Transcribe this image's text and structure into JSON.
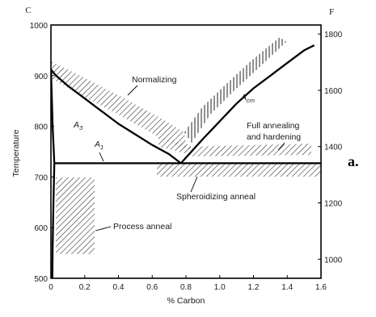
{
  "chart_data": {
    "type": "line",
    "xlabel": "% Carbon",
    "ylabel": "Temperature",
    "left_unit": "C",
    "right_unit": "F",
    "panel_letter": "a.",
    "xlim": [
      0,
      1.6
    ],
    "ylim": [
      500,
      1000
    ],
    "right_ylim": [
      932,
      1832
    ],
    "x_ticks": [
      "0",
      "0.2",
      "0.4",
      "0.6",
      "0.8",
      "1.0",
      "1.2",
      "1.4",
      "1.6"
    ],
    "y_ticks": [
      "500",
      "600",
      "700",
      "800",
      "900",
      "1000"
    ],
    "right_ticks": [
      "1000",
      "1200",
      "1400",
      "1600",
      "1800"
    ],
    "series": [
      {
        "name": "A3",
        "label_main": "A",
        "label_sub": "3",
        "x": [
          0,
          0.03,
          0.1,
          0.2,
          0.3,
          0.4,
          0.5,
          0.6,
          0.7,
          0.77
        ],
        "y": [
          912,
          900,
          880,
          855,
          830,
          805,
          784,
          763,
          745,
          727
        ]
      },
      {
        "name": "Acm",
        "label_main": "A",
        "label_sub": "cm",
        "x": [
          0.77,
          0.9,
          1.0,
          1.1,
          1.2,
          1.3,
          1.4,
          1.5,
          1.56
        ],
        "y": [
          727,
          775,
          810,
          845,
          875,
          900,
          925,
          950,
          960
        ]
      },
      {
        "name": "A1",
        "label_main": "A",
        "label_sub": "1",
        "x": [
          0.02,
          1.6
        ],
        "y": [
          727,
          727
        ]
      },
      {
        "name": "alpha",
        "label_main": "",
        "label_sub": "",
        "x": [
          0,
          0.005,
          0.01,
          0.02
        ],
        "y": [
          912,
          860,
          800,
          727
        ]
      },
      {
        "name": "solvus",
        "label_main": "",
        "label_sub": "",
        "x": [
          0.02,
          0.015,
          0.01,
          0.008
        ],
        "y": [
          727,
          650,
          560,
          500
        ]
      }
    ],
    "annotations": {
      "normalizing": "Normalizing",
      "full_annealing_line1": "Full annealing",
      "full_annealing_line2": "and hardening",
      "spheroidizing": "Spheroidizing anneal",
      "process_anneal": "Process anneal"
    },
    "grid": false
  }
}
